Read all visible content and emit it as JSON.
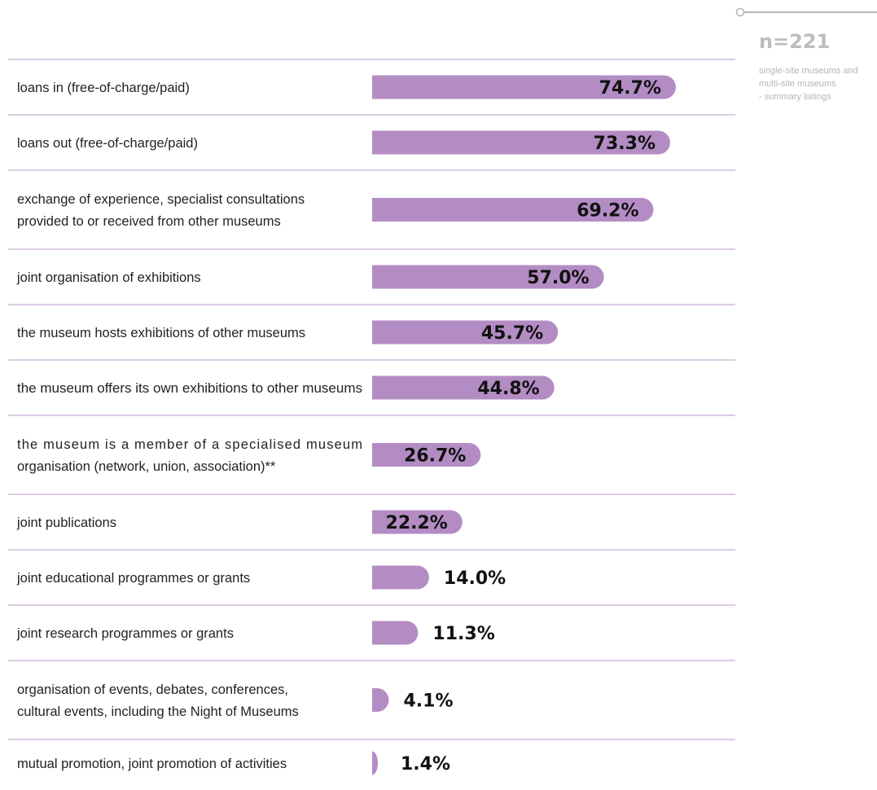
{
  "sample": {
    "n_label": "n=221",
    "note_lines": [
      "single-site museums and",
      "multi-site museums",
      "- summary listings"
    ]
  },
  "colors": {
    "bar": "#b48cc4",
    "separator": "#b89ac8",
    "legend_line": "#b5b5b5"
  },
  "chart_data": {
    "type": "bar",
    "orientation": "horizontal",
    "unit": "%",
    "xlim": [
      0,
      100
    ],
    "grid": false,
    "categories": [
      [
        "loans in (free-of-charge/paid)"
      ],
      [
        "loans out (free-of-charge/paid)"
      ],
      [
        "exchange of experience, specialist consultations",
        "provided to or received from other museums"
      ],
      [
        "joint organisation of exhibitions"
      ],
      [
        "the museum hosts exhibitions of other museums"
      ],
      [
        "the museum offers its own exhibitions to other museums"
      ],
      [
        "the museum is a member of a specialised museum",
        "organisation (network, union, association)**"
      ],
      [
        "joint publications"
      ],
      [
        "joint educational programmes or grants"
      ],
      [
        "joint research programmes or grants"
      ],
      [
        "organisation of events, debates, conferences,",
        "cultural events, including the Night of Museums"
      ],
      [
        "mutual promotion, joint promotion of activities"
      ]
    ],
    "values": [
      74.7,
      73.3,
      69.2,
      57.0,
      45.7,
      44.8,
      26.7,
      22.2,
      14.0,
      11.3,
      4.1,
      1.4
    ],
    "data_labels": [
      "74.7%",
      "73.3%",
      "69.2%",
      "57.0%",
      "45.7%",
      "44.8%",
      "26.7%",
      "22.2%",
      "14.0%",
      "11.3%",
      "4.1%",
      "1.4%"
    ]
  }
}
